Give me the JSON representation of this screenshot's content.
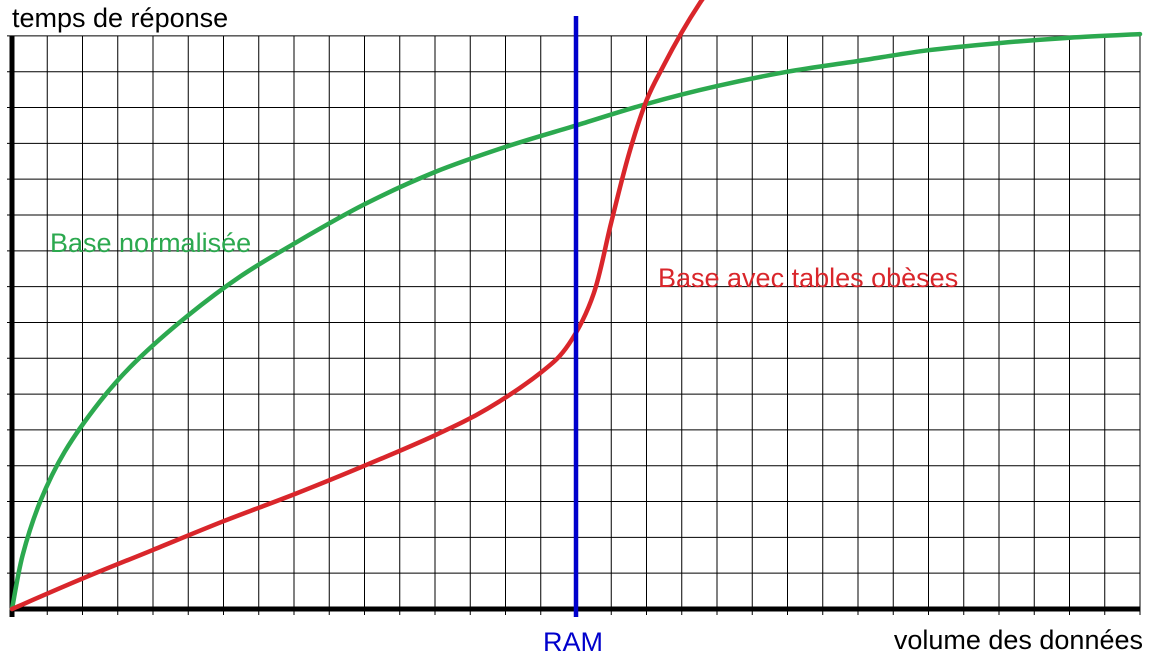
{
  "chart_data": {
    "type": "line",
    "title": "",
    "xlabel": "volume des données",
    "ylabel": "temps de réponse",
    "xlim": [
      0,
      32
    ],
    "ylim": [
      0,
      16.5
    ],
    "grid": true,
    "series": [
      {
        "name": "Base normalisée",
        "color": "#2ca94f",
        "x": [
          0,
          0.3,
          0.8,
          1.5,
          2.5,
          3.5,
          5,
          6.5,
          8,
          10,
          12,
          14,
          16,
          18,
          20,
          22,
          24,
          26,
          28,
          30,
          32
        ],
        "y": [
          0,
          1.5,
          3,
          4.4,
          5.8,
          6.9,
          8.2,
          9.3,
          10.2,
          11.3,
          12.2,
          12.9,
          13.5,
          14.1,
          14.6,
          15.0,
          15.3,
          15.6,
          15.8,
          15.95,
          16.05
        ]
      },
      {
        "name": "Base avec tables obèses",
        "color": "#d9262b",
        "x": [
          0,
          2,
          4,
          6,
          8,
          10,
          12,
          13.5,
          15,
          15.8,
          16.5,
          17,
          17.5,
          18,
          18.5,
          19,
          19.5,
          19.8
        ],
        "y": [
          0,
          0.85,
          1.65,
          2.45,
          3.2,
          4.0,
          4.85,
          5.6,
          6.6,
          7.4,
          8.8,
          10.8,
          12.7,
          14.2,
          15.2,
          16.1,
          16.9,
          17.3
        ]
      }
    ],
    "annotations": [
      {
        "label": "RAM",
        "x": 16,
        "color": "#0000cc",
        "type": "vertical-line"
      }
    ]
  }
}
